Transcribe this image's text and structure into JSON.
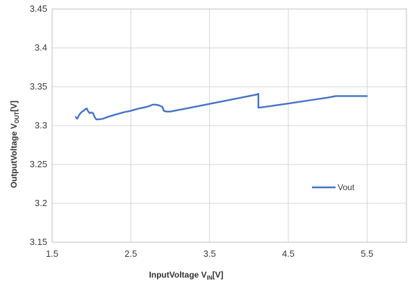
{
  "chart_data": {
    "type": "line",
    "xlabel": {
      "main": "InputVoltage V",
      "sub": "IN",
      "suffix": "[V]"
    },
    "ylabel": {
      "main": "OutputVoltage  V",
      "sub": "OUT",
      "suffix": "[V]"
    },
    "xlim": [
      1.5,
      6.0
    ],
    "ylim": [
      3.15,
      3.45
    ],
    "x_ticks": [
      "1.5",
      "2.5",
      "3.5",
      "4.5",
      "5.5"
    ],
    "y_ticks": [
      "3.15",
      "3.2",
      "3.25",
      "3.3",
      "3.35",
      "3.4",
      "3.45"
    ],
    "grid": true,
    "legend_position": "right-center",
    "series": [
      {
        "name": "Vout",
        "color": "#4472c4",
        "points": [
          [
            1.8,
            3.311
          ],
          [
            1.82,
            3.309
          ],
          [
            1.84,
            3.313
          ],
          [
            1.86,
            3.316
          ],
          [
            1.88,
            3.318
          ],
          [
            1.9,
            3.319
          ],
          [
            1.92,
            3.321
          ],
          [
            1.94,
            3.322
          ],
          [
            1.96,
            3.318
          ],
          [
            1.98,
            3.316
          ],
          [
            2.0,
            3.317
          ],
          [
            2.02,
            3.316
          ],
          [
            2.04,
            3.311
          ],
          [
            2.06,
            3.308
          ],
          [
            2.1,
            3.308
          ],
          [
            2.15,
            3.309
          ],
          [
            2.2,
            3.311
          ],
          [
            2.3,
            3.314
          ],
          [
            2.4,
            3.317
          ],
          [
            2.5,
            3.319
          ],
          [
            2.6,
            3.322
          ],
          [
            2.7,
            3.324
          ],
          [
            2.78,
            3.327
          ],
          [
            2.82,
            3.327
          ],
          [
            2.86,
            3.326
          ],
          [
            2.9,
            3.324
          ],
          [
            2.92,
            3.319
          ],
          [
            2.95,
            3.318
          ],
          [
            3.0,
            3.318
          ],
          [
            3.2,
            3.322
          ],
          [
            3.4,
            3.326
          ],
          [
            3.6,
            3.33
          ],
          [
            3.8,
            3.334
          ],
          [
            4.0,
            3.338
          ],
          [
            4.1,
            3.34
          ],
          [
            4.12,
            3.341
          ],
          [
            4.12,
            3.323
          ],
          [
            4.2,
            3.324
          ],
          [
            4.4,
            3.327
          ],
          [
            4.6,
            3.33
          ],
          [
            4.8,
            3.333
          ],
          [
            5.0,
            3.336
          ],
          [
            5.1,
            3.338
          ],
          [
            5.3,
            3.338
          ],
          [
            5.5,
            3.338
          ]
        ]
      }
    ]
  }
}
